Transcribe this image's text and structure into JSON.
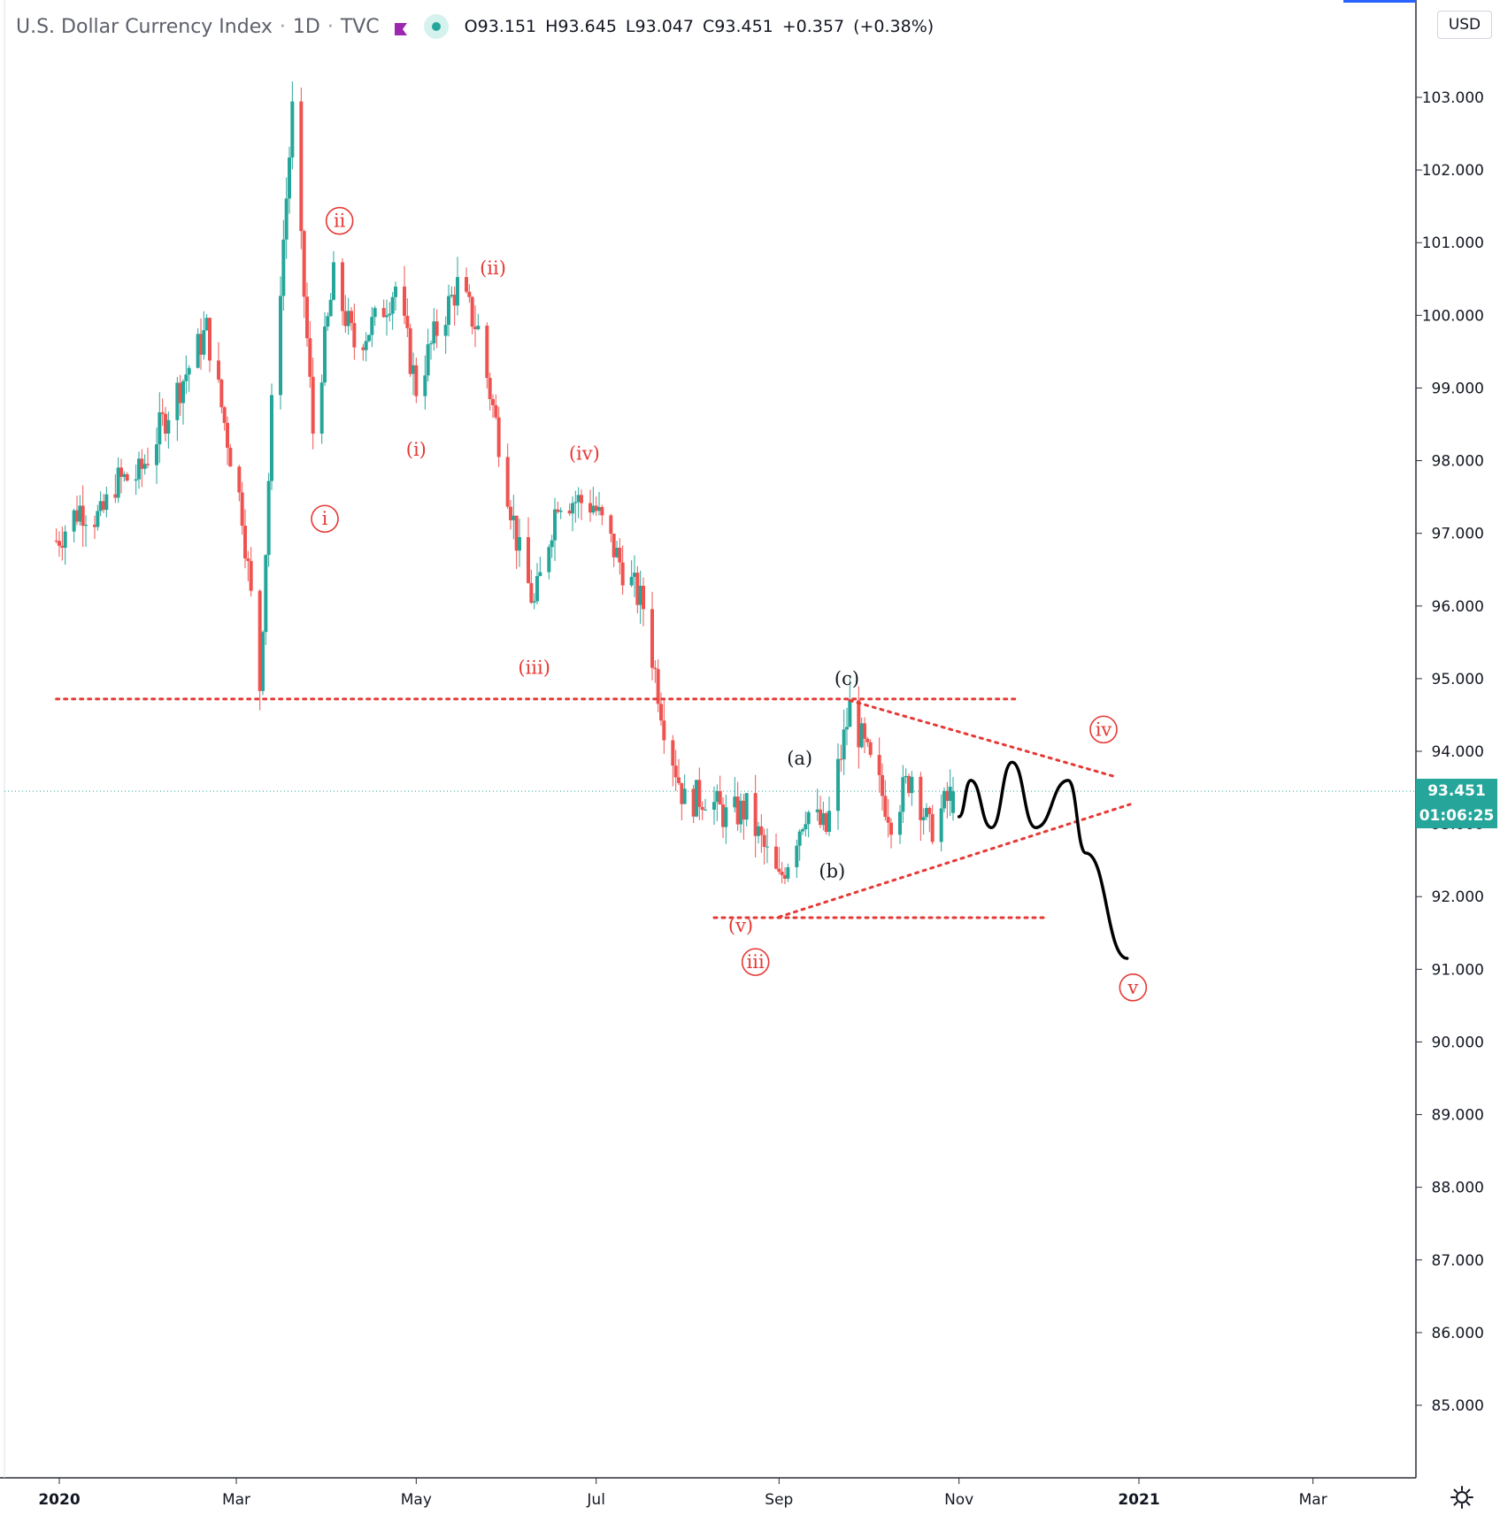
{
  "header": {
    "symbol_name": "U.S. Dollar Currency Index",
    "interval": "1D",
    "exchange": "TVC",
    "ohlc": {
      "open_label": "O",
      "open": "93.151",
      "high_label": "H",
      "high": "93.645",
      "low_label": "L",
      "low": "93.047",
      "close_label": "C",
      "close": "93.451",
      "change": "+0.357",
      "change_pct": "(+0.38%)"
    }
  },
  "currency": "USD",
  "last_price_tag": "93.451",
  "countdown_tag": "01:06:25",
  "icons": [
    "flag-icon",
    "live-status-icon",
    "settings-gear-icon"
  ],
  "colors": {
    "up_candle": "#26a69a",
    "down_candle": "#ef5350",
    "annotation_red": "#e53935",
    "level_line": "#e53935",
    "projection": "#000000",
    "axis_text": "#131722"
  },
  "chart_data": {
    "type": "candlestick",
    "title": "U.S. Dollar Currency Index · 1D · TVC",
    "xlabel": "",
    "ylabel": "",
    "x_ticks": [
      "2020",
      "Mar",
      "May",
      "Jul",
      "Sep",
      "Nov",
      "2021",
      "Mar"
    ],
    "x_tick_dates": [
      "2020-01-01",
      "2020-03-01",
      "2020-05-01",
      "2020-07-01",
      "2020-09-01",
      "2020-11-01",
      "2021-01-01",
      "2021-03-01"
    ],
    "y_ticks": [
      "85.000",
      "86.000",
      "87.000",
      "88.000",
      "89.000",
      "90.000",
      "91.000",
      "92.000",
      "93.000",
      "94.000",
      "95.000",
      "96.000",
      "97.000",
      "98.000",
      "99.000",
      "100.000",
      "101.000",
      "102.000",
      "103.000"
    ],
    "ylim": [
      84.0,
      104.3
    ],
    "grid": false,
    "last_price": 93.451,
    "price_path": [
      {
        "date": "2019-12-31",
        "price": 96.9
      },
      {
        "date": "2020-01-08",
        "price": 97.35
      },
      {
        "date": "2020-01-15",
        "price": 97.2
      },
      {
        "date": "2020-01-20",
        "price": 97.7
      },
      {
        "date": "2020-01-28",
        "price": 97.8
      },
      {
        "date": "2020-02-07",
        "price": 98.7
      },
      {
        "date": "2020-02-20",
        "price": 99.8
      },
      {
        "date": "2020-02-28",
        "price": 98.1
      },
      {
        "date": "2020-03-03",
        "price": 97.3
      },
      {
        "date": "2020-03-09",
        "price": 94.9
      },
      {
        "date": "2020-03-13",
        "price": 98.7
      },
      {
        "date": "2020-03-20",
        "price": 102.8
      },
      {
        "date": "2020-03-27",
        "price": 98.4
      },
      {
        "date": "2020-04-03",
        "price": 100.5
      },
      {
        "date": "2020-04-10",
        "price": 99.6
      },
      {
        "date": "2020-04-17",
        "price": 99.9
      },
      {
        "date": "2020-04-24",
        "price": 100.4
      },
      {
        "date": "2020-05-01",
        "price": 99.0
      },
      {
        "date": "2020-05-08",
        "price": 99.8
      },
      {
        "date": "2020-05-15",
        "price": 100.4
      },
      {
        "date": "2020-05-22",
        "price": 99.8
      },
      {
        "date": "2020-05-29",
        "price": 98.3
      },
      {
        "date": "2020-06-05",
        "price": 96.7
      },
      {
        "date": "2020-06-10",
        "price": 96.0
      },
      {
        "date": "2020-06-18",
        "price": 97.5
      },
      {
        "date": "2020-06-30",
        "price": 97.4
      },
      {
        "date": "2020-07-09",
        "price": 96.6
      },
      {
        "date": "2020-07-17",
        "price": 96.0
      },
      {
        "date": "2020-07-24",
        "price": 94.4
      },
      {
        "date": "2020-07-31",
        "price": 93.3
      },
      {
        "date": "2020-08-07",
        "price": 93.4
      },
      {
        "date": "2020-08-14",
        "price": 93.1
      },
      {
        "date": "2020-08-21",
        "price": 93.2
      },
      {
        "date": "2020-09-01",
        "price": 92.2
      },
      {
        "date": "2020-09-10",
        "price": 93.2
      },
      {
        "date": "2020-09-17",
        "price": 92.9
      },
      {
        "date": "2020-09-25",
        "price": 94.6
      },
      {
        "date": "2020-10-02",
        "price": 93.8
      },
      {
        "date": "2020-10-09",
        "price": 93.1
      },
      {
        "date": "2020-10-16",
        "price": 93.7
      },
      {
        "date": "2020-10-22",
        "price": 92.9
      },
      {
        "date": "2020-10-30",
        "price": 93.45
      }
    ],
    "projection_path": [
      {
        "date": "2020-11-01",
        "price": 93.1
      },
      {
        "date": "2020-11-05",
        "price": 93.6
      },
      {
        "date": "2020-11-12",
        "price": 92.95
      },
      {
        "date": "2020-11-19",
        "price": 93.85
      },
      {
        "date": "2020-11-27",
        "price": 92.95
      },
      {
        "date": "2020-12-08",
        "price": 93.6
      },
      {
        "date": "2020-12-14",
        "price": 92.6
      },
      {
        "date": "2020-12-28",
        "price": 91.15
      }
    ],
    "levels": [
      {
        "name": "resistance-level",
        "from_date": "2019-12-31",
        "to_date": "2020-11-20",
        "price": 94.72
      },
      {
        "name": "support-level",
        "from_date": "2020-08-10",
        "to_date": "2020-12-01",
        "price": 91.71
      },
      {
        "name": "triangle-upper-line",
        "from_date": "2020-09-25",
        "price_from": 94.7,
        "to_date": "2020-12-24",
        "price_to": 93.65
      },
      {
        "name": "triangle-lower-line",
        "from_date": "2020-09-01",
        "price_from": 91.72,
        "to_date": "2020-12-29",
        "price_to": 93.27
      }
    ],
    "annotations": [
      {
        "text": "ii",
        "date": "2020-04-05",
        "price": 101.3,
        "style": "circled-red"
      },
      {
        "text": "i",
        "date": "2020-03-31",
        "price": 97.2,
        "style": "circled-red"
      },
      {
        "text": "(ii)",
        "date": "2020-05-27",
        "price": 100.65,
        "style": "red"
      },
      {
        "text": "(i)",
        "date": "2020-05-01",
        "price": 98.15,
        "style": "red"
      },
      {
        "text": "(iv)",
        "date": "2020-06-27",
        "price": 98.1,
        "style": "red"
      },
      {
        "text": "(iii)",
        "date": "2020-06-10",
        "price": 95.15,
        "style": "red"
      },
      {
        "text": "(c)",
        "date": "2020-09-24",
        "price": 95.0,
        "style": "black"
      },
      {
        "text": "(a)",
        "date": "2020-09-08",
        "price": 93.9,
        "style": "black"
      },
      {
        "text": "(b)",
        "date": "2020-09-19",
        "price": 92.35,
        "style": "black"
      },
      {
        "text": "(v)",
        "date": "2020-08-19",
        "price": 91.6,
        "style": "red"
      },
      {
        "text": "iii",
        "date": "2020-08-24",
        "price": 91.1,
        "style": "circled-red"
      },
      {
        "text": "iv",
        "date": "2020-12-20",
        "price": 94.3,
        "style": "circled-red"
      },
      {
        "text": "v",
        "date": "2020-12-30",
        "price": 90.75,
        "style": "circled-red"
      }
    ]
  }
}
